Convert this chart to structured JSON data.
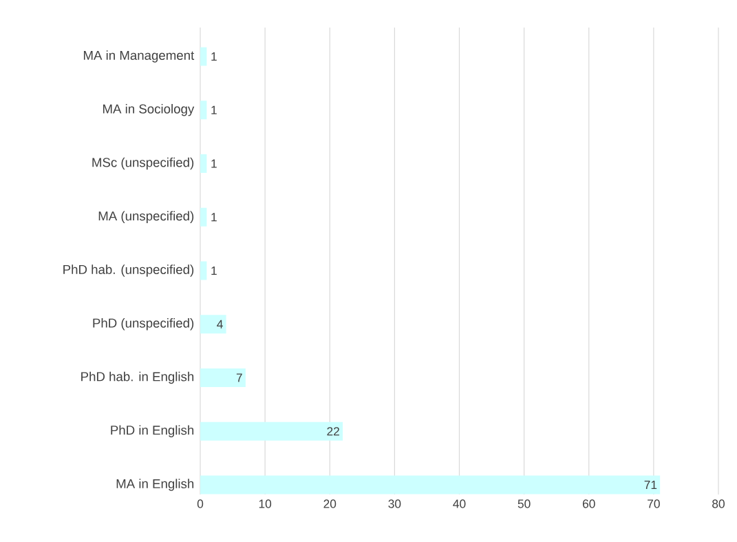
{
  "chart_data": {
    "type": "bar",
    "orientation": "horizontal",
    "categories": [
      "MA in Management",
      "MA in Sociology",
      "MSc (unspecified)",
      "MA (unspecified)",
      "PhD hab. (unspecified)",
      "PhD (unspecified)",
      "PhD hab. in English",
      "PhD in English",
      "MA in English"
    ],
    "values": [
      1,
      1,
      1,
      1,
      1,
      4,
      7,
      22,
      71
    ],
    "color": "#ccffff",
    "xlim": [
      0,
      80
    ],
    "xticks": [
      0,
      10,
      20,
      30,
      40,
      50,
      60,
      70,
      80
    ],
    "grid": "x",
    "data_labels": true
  }
}
